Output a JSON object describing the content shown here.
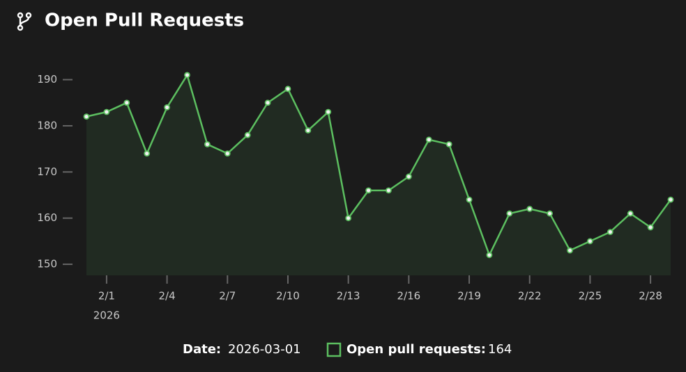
{
  "chart_data": {
    "type": "area",
    "title": "Open Pull Requests",
    "x": [
      "2026-01-31",
      "2026-02-01",
      "2026-02-02",
      "2026-02-03",
      "2026-02-04",
      "2026-02-05",
      "2026-02-06",
      "2026-02-07",
      "2026-02-08",
      "2026-02-09",
      "2026-02-10",
      "2026-02-11",
      "2026-02-12",
      "2026-02-13",
      "2026-02-14",
      "2026-02-15",
      "2026-02-16",
      "2026-02-17",
      "2026-02-18",
      "2026-02-19",
      "2026-02-20",
      "2026-02-21",
      "2026-02-22",
      "2026-02-23",
      "2026-02-24",
      "2026-02-25",
      "2026-02-26",
      "2026-02-27",
      "2026-02-28",
      "2026-03-01"
    ],
    "series": [
      {
        "color": "#5cbf60",
        "values": [
          182,
          183,
          185,
          174,
          184,
          191,
          176,
          174,
          178,
          185,
          188,
          179,
          183,
          160,
          166,
          166,
          169,
          177,
          176,
          164,
          152,
          161,
          162,
          161,
          153,
          155,
          157,
          161,
          158,
          164
        ]
      }
    ],
    "xlim": [
      "2026-01-31",
      "2026-03-01"
    ],
    "xticks": [
      {
        "value": "2026-02-01",
        "label": "2/1"
      },
      {
        "value": "2026-02-04",
        "label": "2/4"
      },
      {
        "value": "2026-02-07",
        "label": "2/7"
      },
      {
        "value": "2026-02-10",
        "label": "2/10"
      },
      {
        "value": "2026-02-13",
        "label": "2/13"
      },
      {
        "value": "2026-02-16",
        "label": "2/16"
      },
      {
        "value": "2026-02-19",
        "label": "2/19"
      },
      {
        "value": "2026-02-22",
        "label": "2/22"
      },
      {
        "value": "2026-02-25",
        "label": "2/25"
      },
      {
        "value": "2026-02-28",
        "label": "2/28"
      }
    ],
    "x_year_label": "2026",
    "ylim": [
      147.6,
      194
    ],
    "yticks": [
      150,
      160,
      170,
      180,
      190
    ],
    "grid": false,
    "tooltip": {
      "date_label": "Date:",
      "series_label": "Open pull requests:"
    }
  }
}
